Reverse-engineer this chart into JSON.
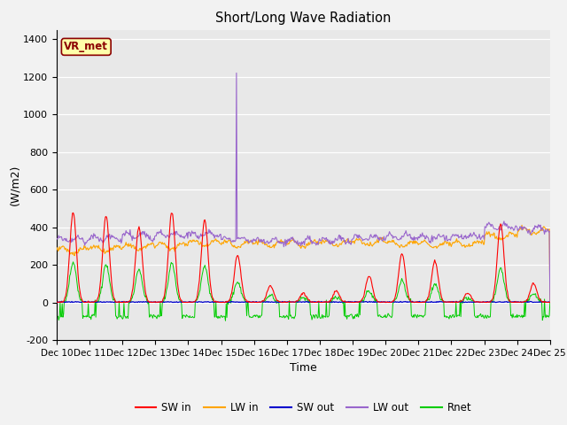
{
  "title": "Short/Long Wave Radiation",
  "xlabel": "Time",
  "ylabel": "(W/m2)",
  "ylim": [
    -200,
    1450
  ],
  "yticks": [
    -200,
    0,
    200,
    400,
    600,
    800,
    1000,
    1200,
    1400
  ],
  "xtick_labels": [
    "Dec 10",
    "Dec 11",
    "Dec 12",
    "Dec 13",
    "Dec 14",
    "Dec 15",
    "Dec 16",
    "Dec 17",
    "Dec 18",
    "Dec 19",
    "Dec 20",
    "Dec 21",
    "Dec 22",
    "Dec 23",
    "Dec 24",
    "Dec 25"
  ],
  "annotation_text": "VR_met",
  "annotation_color": "#8B0000",
  "annotation_bg": "#FFFFAA",
  "bg_color": "#E8E8E8",
  "fig_bg": "#F2F2F2",
  "colors": {
    "SW_in": "#FF0000",
    "LW_in": "#FFA500",
    "SW_out": "#0000CC",
    "LW_out": "#9966CC",
    "Rnet": "#00CC00"
  },
  "legend_labels": [
    "SW in",
    "LW in",
    "SW out",
    "LW out",
    "Rnet"
  ]
}
